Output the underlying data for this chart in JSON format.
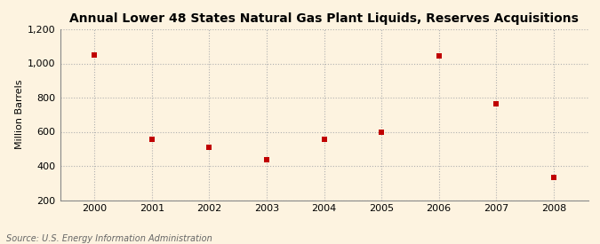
{
  "title": "Annual Lower 48 States Natural Gas Plant Liquids, Reserves Acquisitions",
  "ylabel": "Million Barrels",
  "source": "Source: U.S. Energy Information Administration",
  "years": [
    2000,
    2001,
    2002,
    2003,
    2004,
    2005,
    2006,
    2007,
    2008
  ],
  "values": [
    1050,
    555,
    510,
    435,
    555,
    600,
    1045,
    765,
    330
  ],
  "ylim": [
    200,
    1200
  ],
  "yticks": [
    200,
    400,
    600,
    800,
    1000,
    1200
  ],
  "ytick_labels": [
    "200",
    "400",
    "600",
    "800",
    "1,000",
    "1,200"
  ],
  "xlim": [
    1999.4,
    2008.6
  ],
  "marker_color": "#c00000",
  "marker": "s",
  "marker_size": 4,
  "background_color": "#fdf3e0",
  "plot_bg_color": "#fdf3e0",
  "grid_color": "#b0b0b0",
  "title_fontsize": 10,
  "label_fontsize": 8,
  "tick_fontsize": 8,
  "source_fontsize": 7
}
